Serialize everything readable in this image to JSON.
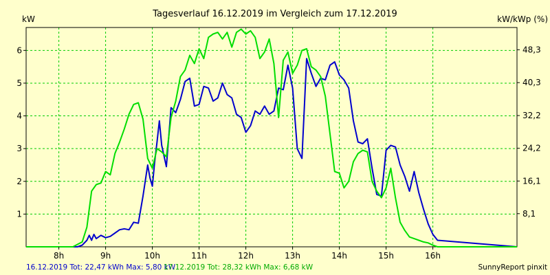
{
  "chart_data": {
    "type": "line",
    "title": "Tagesverlauf 16.12.2019 im Vergleich zum 17.12.2019",
    "ylabel": "kW",
    "ylabel_right": "kW/kWp (%)",
    "xlim": [
      7.3,
      17.8
    ],
    "ylim": [
      0,
      6.7
    ],
    "x_ticks": [
      8,
      9,
      10,
      11,
      12,
      13,
      14,
      15,
      16
    ],
    "x_tick_labels": [
      "8h",
      "9h",
      "10h",
      "11h",
      "12h",
      "13h",
      "14h",
      "15h",
      "16h"
    ],
    "y_ticks": [
      1,
      2,
      3,
      4,
      5,
      6
    ],
    "y_tick_labels": [
      "1",
      "2",
      "3",
      "4",
      "5",
      "6"
    ],
    "y2_ticks": [
      1.013,
      2.01,
      3.01,
      4.01,
      5.016,
      6.02
    ],
    "y2_tick_labels": [
      "8,1",
      "16,1",
      "24,2",
      "32,2",
      "40,3",
      "48,3"
    ],
    "grid": true,
    "series": [
      {
        "name": "16.12.2019",
        "color": "#0000cc",
        "x": [
          7.3,
          8.4,
          8.5,
          8.6,
          8.65,
          8.7,
          8.75,
          8.8,
          8.9,
          9.0,
          9.1,
          9.2,
          9.3,
          9.4,
          9.5,
          9.6,
          9.7,
          9.8,
          9.9,
          9.95,
          10.0,
          10.05,
          10.1,
          10.15,
          10.2,
          10.3,
          10.4,
          10.5,
          10.6,
          10.7,
          10.8,
          10.9,
          11.0,
          11.1,
          11.2,
          11.3,
          11.4,
          11.5,
          11.6,
          11.7,
          11.8,
          11.9,
          12.0,
          12.1,
          12.2,
          12.3,
          12.4,
          12.5,
          12.6,
          12.7,
          12.8,
          12.9,
          13.0,
          13.1,
          13.2,
          13.3,
          13.4,
          13.5,
          13.6,
          13.7,
          13.8,
          13.9,
          14.0,
          14.1,
          14.2,
          14.3,
          14.4,
          14.5,
          14.6,
          14.7,
          14.8,
          14.9,
          15.0,
          15.1,
          15.2,
          15.3,
          15.4,
          15.5,
          15.6,
          15.7,
          15.8,
          15.9,
          16.0,
          16.1,
          17.8
        ],
        "values": [
          0,
          0,
          0.05,
          0.2,
          0.35,
          0.2,
          0.38,
          0.25,
          0.35,
          0.28,
          0.32,
          0.42,
          0.52,
          0.55,
          0.52,
          0.75,
          0.72,
          1.55,
          2.5,
          2.1,
          1.85,
          2.6,
          3.2,
          3.85,
          3.1,
          2.45,
          4.25,
          4.1,
          4.5,
          5.05,
          5.15,
          4.3,
          4.35,
          4.9,
          4.85,
          4.45,
          4.55,
          5.0,
          4.65,
          4.55,
          4.05,
          3.95,
          3.5,
          3.7,
          4.15,
          4.05,
          4.3,
          4.05,
          4.15,
          4.85,
          4.8,
          5.55,
          4.85,
          3.0,
          2.7,
          5.75,
          5.3,
          4.9,
          5.15,
          5.1,
          5.55,
          5.65,
          5.25,
          5.1,
          4.85,
          3.85,
          3.2,
          3.15,
          3.3,
          2.4,
          1.6,
          1.55,
          2.95,
          3.1,
          3.05,
          2.5,
          2.15,
          1.7,
          2.3,
          1.65,
          1.15,
          0.7,
          0.38,
          0.2,
          0
        ],
        "unit": "kW"
      },
      {
        "name": "17.12.2019",
        "color": "#00dd00",
        "x": [
          7.3,
          8.3,
          8.5,
          8.6,
          8.7,
          8.8,
          8.9,
          9.0,
          9.1,
          9.2,
          9.3,
          9.4,
          9.5,
          9.6,
          9.7,
          9.8,
          9.9,
          10.0,
          10.1,
          10.2,
          10.3,
          10.4,
          10.5,
          10.6,
          10.7,
          10.8,
          10.9,
          11.0,
          11.1,
          11.2,
          11.3,
          11.4,
          11.5,
          11.6,
          11.7,
          11.8,
          11.9,
          12.0,
          12.1,
          12.2,
          12.3,
          12.4,
          12.5,
          12.6,
          12.7,
          12.8,
          12.9,
          13.0,
          13.1,
          13.2,
          13.3,
          13.4,
          13.5,
          13.6,
          13.7,
          13.8,
          13.9,
          14.0,
          14.1,
          14.2,
          14.3,
          14.4,
          14.5,
          14.6,
          14.7,
          14.8,
          14.9,
          15.0,
          15.1,
          15.2,
          15.3,
          15.4,
          15.5,
          15.6,
          15.7,
          15.8,
          15.9,
          16.0,
          16.1,
          17.8
        ],
        "values": [
          0,
          0,
          0.15,
          0.6,
          1.7,
          1.9,
          1.95,
          2.3,
          2.2,
          2.85,
          3.2,
          3.6,
          4.05,
          4.35,
          4.4,
          3.9,
          2.7,
          2.4,
          3.0,
          2.9,
          2.75,
          3.95,
          4.45,
          5.2,
          5.4,
          5.85,
          5.6,
          6.05,
          5.75,
          6.4,
          6.5,
          6.55,
          6.35,
          6.55,
          6.1,
          6.55,
          6.65,
          6.5,
          6.6,
          6.4,
          5.75,
          5.95,
          6.35,
          5.6,
          3.95,
          5.7,
          5.95,
          5.3,
          5.55,
          6.0,
          6.05,
          5.5,
          5.4,
          5.2,
          4.6,
          3.45,
          2.3,
          2.25,
          1.8,
          2.0,
          2.6,
          2.85,
          2.95,
          2.9,
          2.0,
          1.7,
          1.5,
          1.8,
          2.4,
          1.5,
          0.75,
          0.5,
          0.3,
          0.25,
          0.2,
          0.15,
          0.12,
          0.05,
          0,
          0
        ],
        "unit": "kW"
      }
    ]
  },
  "footer": {
    "series1_summary": "16.12.2019 Tot: 22,47 kWh Max: 5,80 kW",
    "series2_summary": "17.12.2019 Tot: 28,32 kWh Max: 6,68 kW",
    "credit": "SunnyReport pinxit",
    "series1_color": "#0000cc",
    "series2_color": "#00aa00"
  },
  "colors": {
    "background": "#ffffcc",
    "grid": "#00cc00",
    "axis": "#000000"
  }
}
